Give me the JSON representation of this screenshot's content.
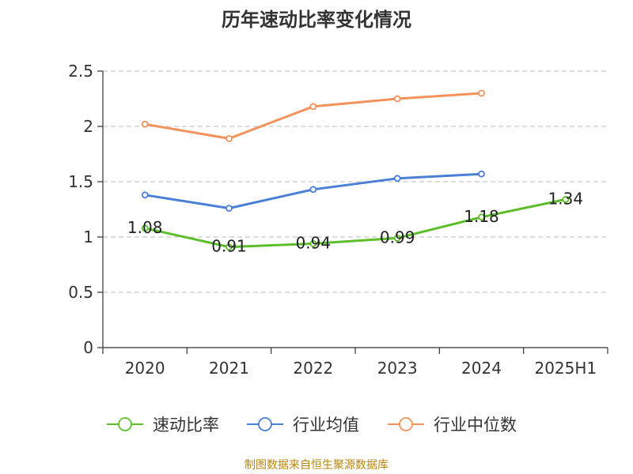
{
  "chart_data": {
    "type": "line",
    "title": "历年速动比率变化情况",
    "categories": [
      "2020",
      "2021",
      "2022",
      "2023",
      "2024",
      "2025H1"
    ],
    "ylim": [
      0,
      2.5
    ],
    "yticks": [
      "0",
      "0.5",
      "1",
      "1.5",
      "2",
      "2.5"
    ],
    "grid": true,
    "legend_position": "bottom",
    "series": [
      {
        "name": "速动比率",
        "color": "#5cbf2a",
        "values": [
          1.08,
          0.91,
          0.94,
          0.99,
          1.18,
          1.34
        ],
        "labels": [
          "1.08",
          "0.91",
          "0.94",
          "0.99",
          "1.18",
          "1.34"
        ]
      },
      {
        "name": "行业均值",
        "color": "#4a7fd6",
        "values": [
          1.38,
          1.26,
          1.43,
          1.53,
          1.57,
          null
        ]
      },
      {
        "name": "行业中位数",
        "color": "#f5915a",
        "values": [
          2.02,
          1.89,
          2.18,
          2.25,
          2.3,
          null
        ]
      }
    ],
    "source": "制图数据来自恒生聚源数据库"
  }
}
